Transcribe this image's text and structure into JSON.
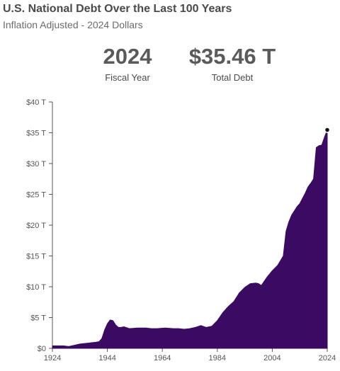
{
  "header": {
    "title": "U.S. National Debt Over the Last 100 Years",
    "subtitle": "Inflation Adjusted - 2024 Dollars"
  },
  "stats": {
    "year_value": "2024",
    "year_label": "Fiscal Year",
    "debt_value": "$35.46 T",
    "debt_label": "Total Debt"
  },
  "colors": {
    "area": "#3b0a63",
    "axis": "#555555",
    "marker": "#111111"
  },
  "chart_data": {
    "type": "area",
    "title": "U.S. National Debt Over the Last 100 Years",
    "subtitle": "Inflation Adjusted - 2024 Dollars",
    "xlabel": "",
    "ylabel": "",
    "xlim": [
      1924,
      2024
    ],
    "ylim": [
      0,
      40
    ],
    "x_ticks": [
      1924,
      1944,
      1964,
      1984,
      2004,
      2024
    ],
    "x_tick_labels": [
      "1924",
      "1944",
      "1964",
      "1984",
      "2004",
      "2024"
    ],
    "y_ticks": [
      0,
      5,
      10,
      15,
      20,
      25,
      30,
      35,
      40
    ],
    "y_tick_labels": [
      "$0",
      "$5 T",
      "$10 T",
      "$15 T",
      "$20 T",
      "$25 T",
      "$30 T",
      "$35 T",
      "$40 T"
    ],
    "grid": false,
    "series": [
      {
        "unit": "trillions of 2024 dollars",
        "x": [
          1924,
          1928,
          1930,
          1932,
          1934,
          1936,
          1938,
          1940,
          1941,
          1942,
          1943,
          1944,
          1945,
          1946,
          1947,
          1948,
          1949,
          1950,
          1952,
          1955,
          1958,
          1960,
          1962,
          1965,
          1968,
          1970,
          1972,
          1974,
          1976,
          1978,
          1980,
          1982,
          1984,
          1986,
          1988,
          1990,
          1992,
          1994,
          1996,
          1998,
          1999,
          2000,
          2002,
          2004,
          2006,
          2008,
          2009,
          2010,
          2011,
          2012,
          2013,
          2014,
          2016,
          2017,
          2018,
          2019,
          2020,
          2021,
          2022,
          2023,
          2024
        ],
        "values": [
          0.4,
          0.4,
          0.3,
          0.5,
          0.7,
          0.8,
          0.9,
          1.0,
          1.1,
          1.6,
          3.0,
          4.0,
          4.6,
          4.5,
          3.8,
          3.4,
          3.4,
          3.5,
          3.2,
          3.3,
          3.3,
          3.2,
          3.2,
          3.3,
          3.2,
          3.2,
          3.1,
          3.2,
          3.4,
          3.7,
          3.4,
          3.6,
          4.5,
          5.8,
          6.8,
          7.6,
          9.0,
          9.9,
          10.5,
          10.6,
          10.5,
          10.2,
          11.5,
          12.6,
          13.5,
          15.0,
          19.0,
          20.5,
          21.6,
          22.3,
          23.0,
          23.5,
          25.2,
          26.2,
          26.8,
          27.5,
          32.6,
          32.9,
          33.0,
          34.3,
          35.46
        ]
      }
    ],
    "annotations": [
      {
        "x": 2024,
        "y": 35.46,
        "label": "$35.46 T",
        "type": "end-point-marker"
      }
    ]
  }
}
